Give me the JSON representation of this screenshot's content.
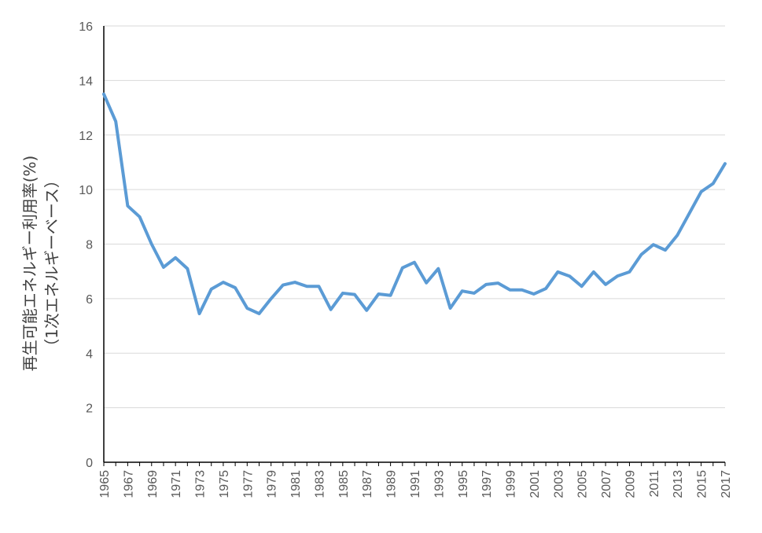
{
  "chart_data": {
    "type": "line",
    "title": "",
    "xlabel": "",
    "ylabel_lines": [
      "再生可能エネルギー利用率(%)",
      "（1次エネルギーベース）"
    ],
    "ylim": [
      0,
      16
    ],
    "yticks": [
      0,
      2,
      4,
      6,
      8,
      10,
      12,
      14,
      16
    ],
    "xlim": [
      1965,
      2017
    ],
    "xtick_labels": [
      "1965",
      "1967",
      "1969",
      "1971",
      "1973",
      "1975",
      "1977",
      "1979",
      "1981",
      "1983",
      "1985",
      "1987",
      "1989",
      "1991",
      "1993",
      "1995",
      "1997",
      "1999",
      "2001",
      "2003",
      "2005",
      "2007",
      "2009",
      "2011",
      "2013",
      "2015",
      "2017"
    ],
    "grid": true,
    "series_color": "#5b9bd5",
    "x": [
      1965,
      1966,
      1967,
      1968,
      1969,
      1970,
      1971,
      1972,
      1973,
      1974,
      1975,
      1976,
      1977,
      1978,
      1979,
      1980,
      1981,
      1982,
      1983,
      1984,
      1985,
      1986,
      1987,
      1988,
      1989,
      1990,
      1991,
      1992,
      1993,
      1994,
      1995,
      1996,
      1997,
      1998,
      1999,
      2000,
      2001,
      2002,
      2003,
      2004,
      2005,
      2006,
      2007,
      2008,
      2009,
      2010,
      2011,
      2012,
      2013,
      2014,
      2015,
      2016,
      2017
    ],
    "values": [
      13.5,
      12.5,
      9.4,
      9.0,
      8.0,
      7.15,
      7.5,
      7.1,
      5.45,
      6.35,
      6.6,
      6.4,
      5.65,
      5.45,
      6.0,
      6.5,
      6.6,
      6.45,
      6.45,
      5.6,
      6.2,
      6.15,
      5.57,
      6.17,
      6.12,
      7.13,
      7.33,
      6.58,
      7.1,
      5.65,
      6.28,
      6.2,
      6.52,
      6.57,
      6.32,
      6.32,
      6.17,
      6.37,
      6.98,
      6.82,
      6.45,
      6.98,
      6.52,
      6.83,
      6.98,
      7.62,
      7.98,
      7.78,
      8.32,
      9.12,
      9.92,
      10.22,
      10.95
    ]
  }
}
